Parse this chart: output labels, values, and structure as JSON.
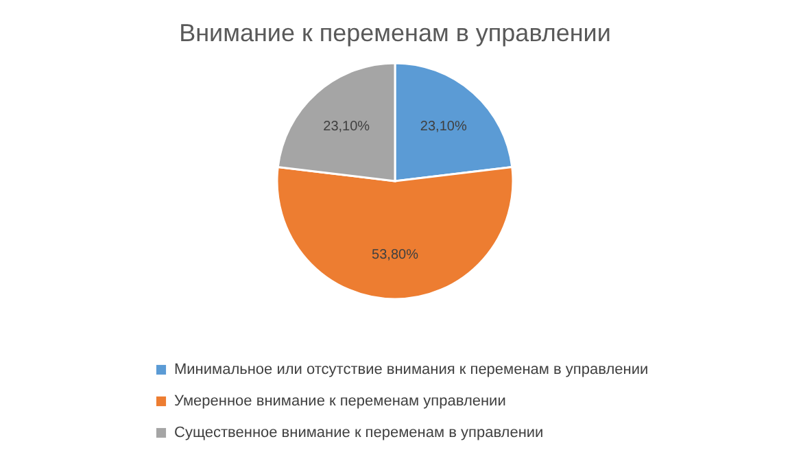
{
  "chart_data": {
    "type": "pie",
    "title": "Внимание к переменам в управлении",
    "categories": [
      "Минимальное или отсутствие внимания к переменам в управлении",
      "Умеренное внимание к переменам управлении",
      "Существенное внимание к переменам в управлении"
    ],
    "values": [
      23.1,
      53.8,
      23.1
    ],
    "colors": [
      "#5b9bd5",
      "#ed7d31",
      "#a5a5a5"
    ],
    "value_labels": [
      "23,10%",
      "53,80%",
      "23,10%"
    ],
    "legend": "bottom"
  }
}
